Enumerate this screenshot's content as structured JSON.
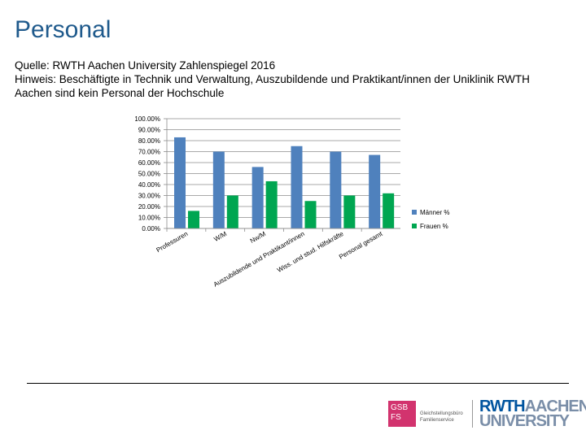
{
  "header": {
    "title": "Personal",
    "source_line": "Quelle: RWTH Aachen University Zahlenspiegel 2016",
    "note_line1": "Hinweis: Beschäftigte in Technik und Verwaltung, Auszubildende und Praktikant/innen der Uniklinik RWTH",
    "note_line2": "Aachen sind kein Personal der Hochschule"
  },
  "chart_data": {
    "type": "bar",
    "categories": [
      "Professuren",
      "W/M",
      "Nw/M",
      "Auszubildende und Praktikant/innen",
      "Wiss. und stud. Hilfskräfte",
      "Personal gesamt"
    ],
    "series": [
      {
        "name": "Männer %",
        "color": "#4f81bd",
        "values": [
          83,
          70,
          56,
          75,
          70,
          67
        ]
      },
      {
        "name": "Frauen %",
        "color": "#00a651",
        "values": [
          16,
          30,
          43,
          25,
          30,
          32
        ]
      }
    ],
    "ylim": [
      0,
      100
    ],
    "yticks": [
      "0.00%",
      "10.00%",
      "20.00%",
      "30.00%",
      "40.00%",
      "50.00%",
      "60.00%",
      "70.00%",
      "80.00%",
      "90.00%",
      "100.00%"
    ],
    "legend_position": "right",
    "grid": true
  },
  "footer": {
    "gsb_logo": "GSB FS",
    "gsb_text_line1": "Gleichstellungsbüro",
    "gsb_text_line2": "Familienservice",
    "rwth_line1_a": "RWTH",
    "rwth_line1_b": "AACHEN",
    "rwth_line2": "UNIVERSITY"
  }
}
